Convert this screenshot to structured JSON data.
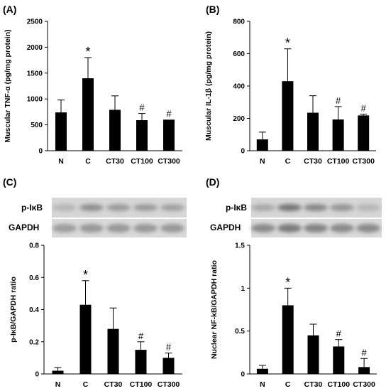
{
  "figure": {
    "blot_labels": [
      "p-IκB",
      "GAPDH"
    ],
    "blot_labels_d": [
      "p-IκB",
      "GAPDH"
    ]
  },
  "chart_data": [
    {
      "panel_label": "(A)",
      "type": "bar",
      "categories": [
        "N",
        "C",
        "CT30",
        "CT100",
        "CT300"
      ],
      "values": [
        740,
        1400,
        790,
        590,
        600
      ],
      "errors": [
        240,
        400,
        270,
        130,
        0
      ],
      "annotations": [
        "",
        "*",
        "",
        "#",
        "#"
      ],
      "ylabel": "Muscular TNF-α (pg/mg protein)",
      "ylim": [
        0,
        2500
      ],
      "yticks": [
        "0",
        "500",
        "1000",
        "1500",
        "2000",
        "2500"
      ],
      "color": "#000000",
      "grid": false
    },
    {
      "panel_label": "(B)",
      "type": "bar",
      "categories": [
        "N",
        "C",
        "CT30",
        "CT100",
        "CT300"
      ],
      "values": [
        70,
        430,
        235,
        193,
        218
      ],
      "errors": [
        45,
        200,
        105,
        80,
        8
      ],
      "annotations": [
        "",
        "*",
        "",
        "#",
        "#"
      ],
      "ylabel": "Muscular IL-1β (pg/mg protein)",
      "ylim": [
        0,
        800
      ],
      "yticks": [
        "0",
        "200",
        "400",
        "600",
        "800"
      ],
      "color": "#000000",
      "grid": false
    },
    {
      "panel_label": "(C)",
      "type": "bar",
      "categories": [
        "N",
        "C",
        "CT30",
        "CT100",
        "CT300"
      ],
      "values": [
        0.02,
        0.43,
        0.28,
        0.15,
        0.1
      ],
      "errors": [
        0.02,
        0.15,
        0.13,
        0.05,
        0.03
      ],
      "annotations": [
        "",
        "*",
        "",
        "#",
        "#"
      ],
      "ylabel": "p-IκB/GAPDH ratio",
      "ylim": [
        0,
        0.8
      ],
      "yticks": [
        "0",
        "0.2",
        "0.4",
        "0.6",
        "0.8"
      ],
      "color": "#000000",
      "grid": false
    },
    {
      "panel_label": "(D)",
      "type": "bar",
      "categories": [
        "N",
        "C",
        "CT30",
        "CT100",
        "CT300"
      ],
      "values": [
        0.06,
        0.8,
        0.45,
        0.32,
        0.08
      ],
      "errors": [
        0.04,
        0.2,
        0.13,
        0.08,
        0.1
      ],
      "annotations": [
        "",
        "*",
        "",
        "#",
        "#"
      ],
      "ylabel": "Nuclear NF-kB/GAPDH ratio",
      "ylim": [
        0,
        1.5
      ],
      "yticks": [
        "0",
        "0.5",
        "1",
        "1.5"
      ],
      "color": "#000000",
      "grid": false
    }
  ]
}
